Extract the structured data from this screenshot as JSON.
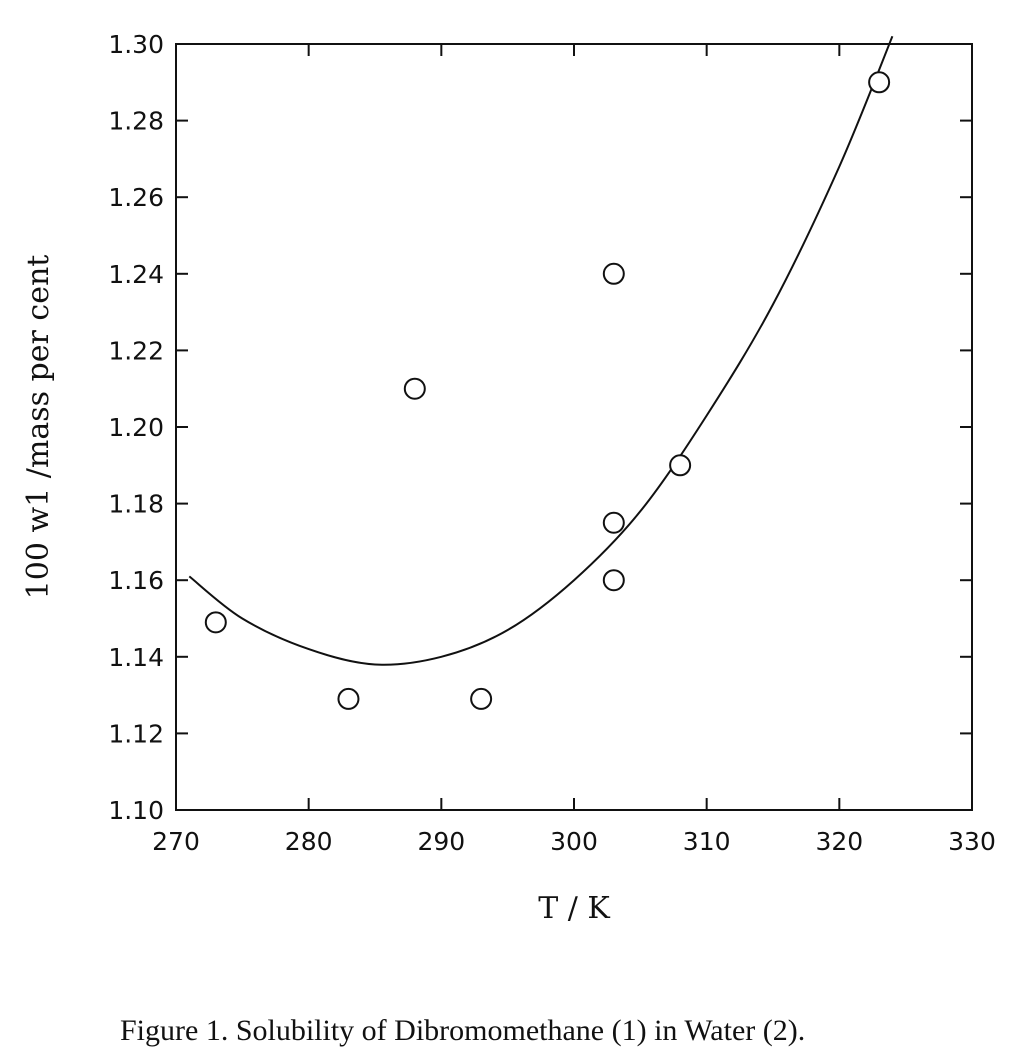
{
  "chart_data": {
    "type": "scatter",
    "title": "",
    "caption": "Figure 1. Solubility of Dibromomethane (1) in Water (2).",
    "xlabel": "T / K",
    "ylabel": "100 w1 /mass per cent",
    "xlim": [
      270,
      330
    ],
    "ylim": [
      1.1,
      1.3
    ],
    "x_ticks": [
      "270",
      "280",
      "290",
      "300",
      "310",
      "320",
      "330"
    ],
    "y_ticks": [
      "1.10",
      "1.12",
      "1.14",
      "1.16",
      "1.18",
      "1.20",
      "1.22",
      "1.24",
      "1.26",
      "1.28",
      "1.30"
    ],
    "grid": false,
    "legend": "none",
    "series": [
      {
        "kind": "points",
        "marker": "open-circle",
        "points": [
          {
            "x": 273,
            "y": 1.149
          },
          {
            "x": 283,
            "y": 1.129
          },
          {
            "x": 288,
            "y": 1.21
          },
          {
            "x": 293,
            "y": 1.129
          },
          {
            "x": 303,
            "y": 1.24
          },
          {
            "x": 303,
            "y": 1.175
          },
          {
            "x": 303,
            "y": 1.16
          },
          {
            "x": 308,
            "y": 1.19
          },
          {
            "x": 323,
            "y": 1.29
          }
        ]
      },
      {
        "kind": "fit-curve",
        "points": [
          {
            "x": 271,
            "y": 1.161
          },
          {
            "x": 275,
            "y": 1.15
          },
          {
            "x": 280,
            "y": 1.142
          },
          {
            "x": 285,
            "y": 1.138
          },
          {
            "x": 290,
            "y": 1.14
          },
          {
            "x": 295,
            "y": 1.147
          },
          {
            "x": 300,
            "y": 1.16
          },
          {
            "x": 305,
            "y": 1.178
          },
          {
            "x": 310,
            "y": 1.203
          },
          {
            "x": 315,
            "y": 1.232
          },
          {
            "x": 320,
            "y": 1.268
          },
          {
            "x": 324,
            "y": 1.302
          }
        ]
      }
    ]
  }
}
